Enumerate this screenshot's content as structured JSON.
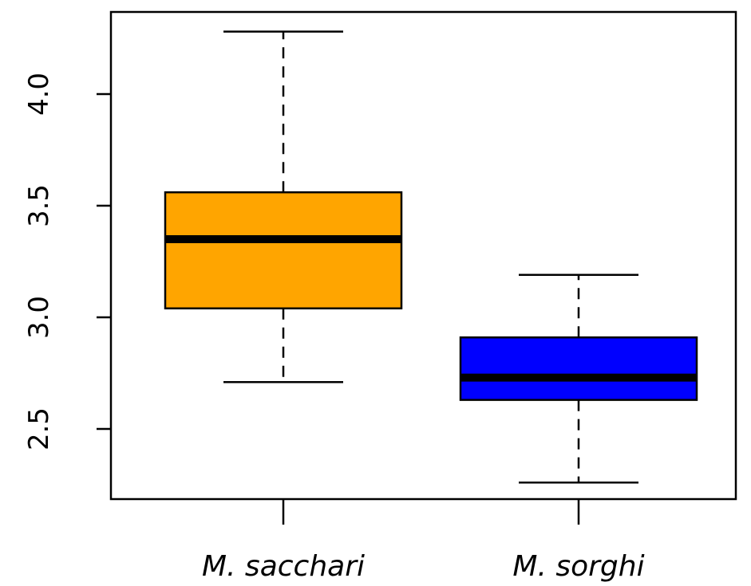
{
  "chart_data": {
    "type": "boxplot",
    "title": "",
    "xlabel": "",
    "ylabel": "",
    "ylim": [
      2.2,
      4.3
    ],
    "yticks": [
      2.5,
      3.0,
      3.5,
      4.0
    ],
    "ytick_labels": [
      "2.5",
      "3.0",
      "3.5",
      "4.0"
    ],
    "grid": false,
    "legend": "none",
    "categories": [
      "M. sacchari",
      "M. sorghi"
    ],
    "boxes": [
      {
        "category": "M. sacchari",
        "whisker_low": 2.71,
        "q1": 3.04,
        "median": 3.35,
        "q3": 3.56,
        "whisker_high": 4.28,
        "color": "#FFA500"
      },
      {
        "category": "M. sorghi",
        "whisker_low": 2.26,
        "q1": 2.63,
        "median": 2.73,
        "q3": 2.91,
        "whisker_high": 3.19,
        "color": "#0000FF"
      }
    ]
  }
}
